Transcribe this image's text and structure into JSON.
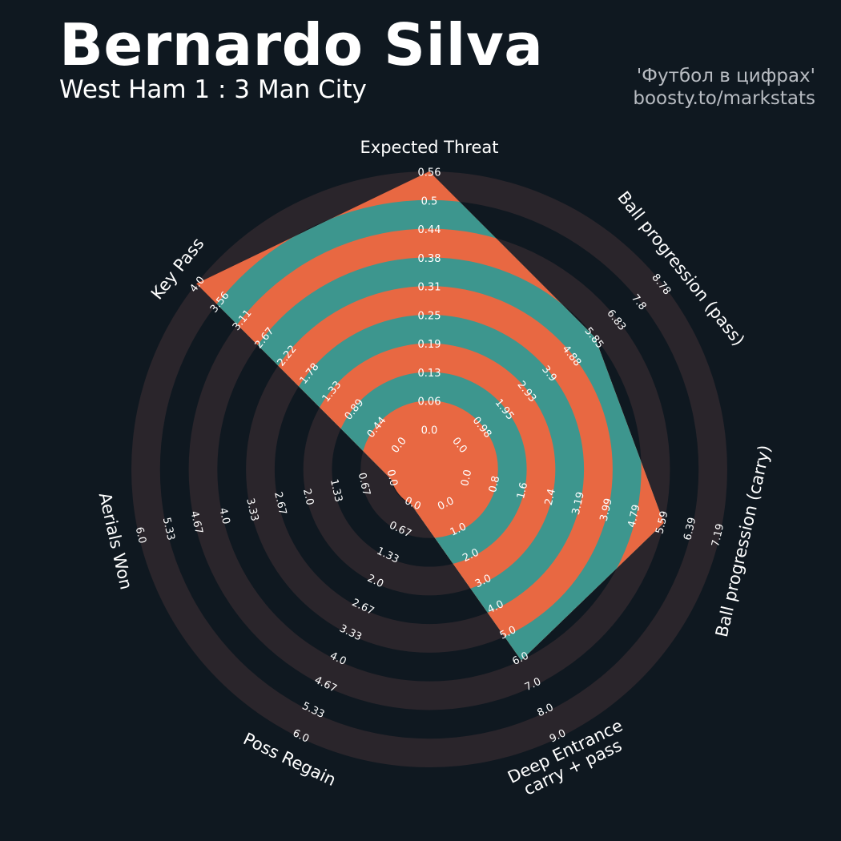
{
  "header": {
    "title": "Bernardo Silva",
    "subtitle": "West Ham 1 : 3 Man City",
    "credit_line1": "'Футбол в цифрах'",
    "credit_line2": "boosty.to/markstats"
  },
  "colors": {
    "background": "#0f1820",
    "ring_light": "#2a252b",
    "ring_dark": "#0f1820",
    "area_teal": "#3d968e",
    "area_orange": "#e86842",
    "text": "#ffffff",
    "credit": "#b8bcc2"
  },
  "chart_data": {
    "type": "radar",
    "title": "Bernardo Silva",
    "subtitle": "West Ham 1 : 3 Man City",
    "parameters": [
      {
        "label": "Expected Threat",
        "lines": [
          "Expected Threat"
        ],
        "min": 0.0,
        "max": 0.56,
        "value": 0.56,
        "ticks": [
          "0.0",
          "0.06",
          "0.13",
          "0.19",
          "0.25",
          "0.31",
          "0.38",
          "0.44",
          "0.5",
          "0.56"
        ]
      },
      {
        "label": "Ball progression (pass)",
        "lines": [
          "Ball progression (pass)"
        ],
        "min": 0.0,
        "max": 8.78,
        "value": 5.85,
        "ticks": [
          "0.0",
          "0.98",
          "1.95",
          "2.93",
          "3.9",
          "4.88",
          "5.85",
          "6.83",
          "7.8",
          "8.78"
        ]
      },
      {
        "label": "Ball progression (carry)",
        "lines": [
          "Ball progression (carry)"
        ],
        "min": 0.0,
        "max": 7.19,
        "value": 5.59,
        "ticks": [
          "0.0",
          "0.8",
          "1.6",
          "2.4",
          "3.19",
          "3.99",
          "4.79",
          "5.59",
          "6.39",
          "7.19"
        ]
      },
      {
        "label": "Deep Entrance carry + pass",
        "lines": [
          "Deep Entrance",
          "carry + pass"
        ],
        "min": 0.0,
        "max": 9.0,
        "value": 6.0,
        "ticks": [
          "0.0",
          "1.0",
          "2.0",
          "3.0",
          "4.0",
          "5.0",
          "6.0",
          "7.0",
          "8.0",
          "9.0"
        ]
      },
      {
        "label": "Poss Regain",
        "lines": [
          "Poss Regain"
        ],
        "min": 0.0,
        "max": 6.0,
        "value": 0.0,
        "ticks": [
          "0.0",
          "0.67",
          "1.33",
          "2.0",
          "2.67",
          "3.33",
          "4.0",
          "4.67",
          "5.33",
          "6.0"
        ]
      },
      {
        "label": "Aerials Won",
        "lines": [
          "Aerials Won"
        ],
        "min": 0.0,
        "max": 6.0,
        "value": 0.0,
        "ticks": [
          "0.0",
          "0.67",
          "1.33",
          "2.0",
          "2.67",
          "3.33",
          "4.0",
          "4.67",
          "5.33",
          "6.0"
        ]
      },
      {
        "label": "Key Pass",
        "lines": [
          "Key Pass"
        ],
        "min": 0.0,
        "max": 4.0,
        "value": 4.0,
        "ticks": [
          "0.0",
          "0.44",
          "0.89",
          "1.33",
          "1.78",
          "2.22",
          "2.67",
          "3.11",
          "3.56",
          "4.0"
        ]
      }
    ]
  }
}
